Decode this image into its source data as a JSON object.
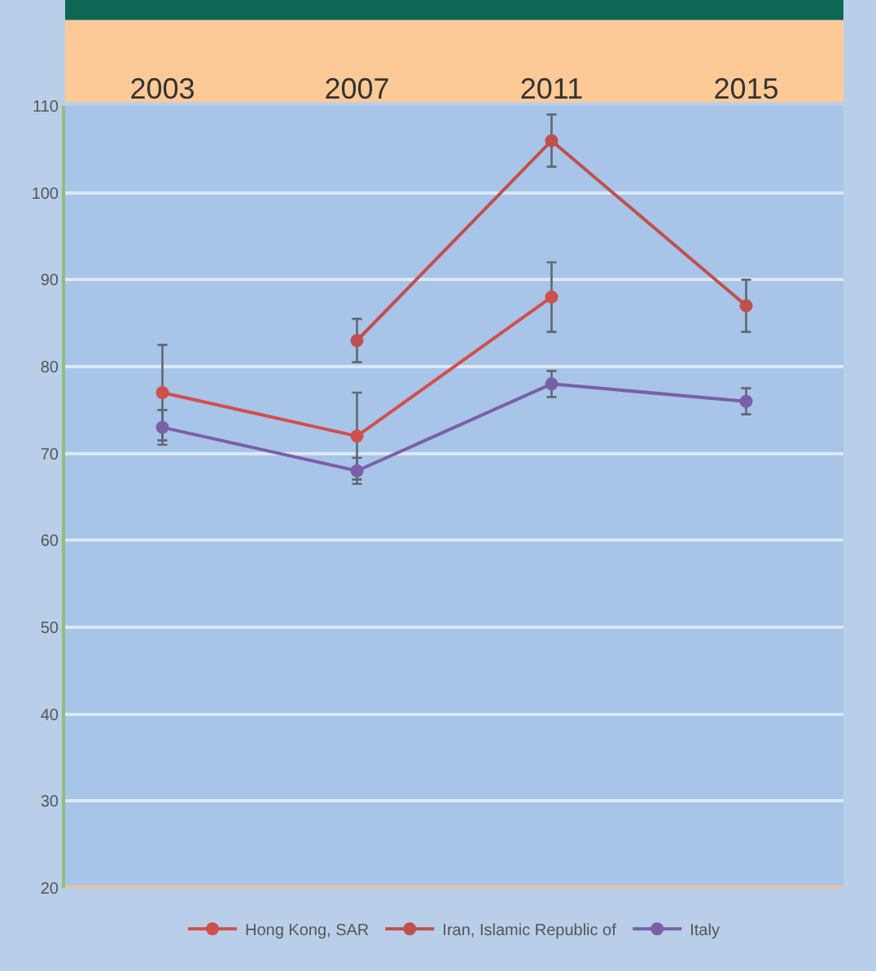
{
  "chart_data": {
    "type": "line",
    "categories": [
      "2003",
      "2007",
      "2011",
      "2015"
    ],
    "series": [
      {
        "name": "Hong Kong, SAR",
        "color": "#d0504c",
        "values": [
          77,
          72,
          88,
          null
        ],
        "errors": [
          5.5,
          5,
          4,
          null
        ]
      },
      {
        "name": "Iran, Islamic Republic of",
        "color": "#c0504d",
        "values": [
          null,
          83,
          106,
          87
        ],
        "errors": [
          null,
          2.5,
          3,
          3
        ]
      },
      {
        "name": "Italy",
        "color": "#7a5fa8",
        "values": [
          73,
          68,
          78,
          76
        ],
        "errors": [
          2,
          1.5,
          1.5,
          1.5
        ]
      }
    ],
    "ylim": [
      20,
      110
    ],
    "yticks": [
      20,
      30,
      40,
      50,
      60,
      70,
      80,
      90,
      100,
      110
    ],
    "grid": "y",
    "legend": "bottom",
    "marker": "circle",
    "line_style": "solid"
  }
}
